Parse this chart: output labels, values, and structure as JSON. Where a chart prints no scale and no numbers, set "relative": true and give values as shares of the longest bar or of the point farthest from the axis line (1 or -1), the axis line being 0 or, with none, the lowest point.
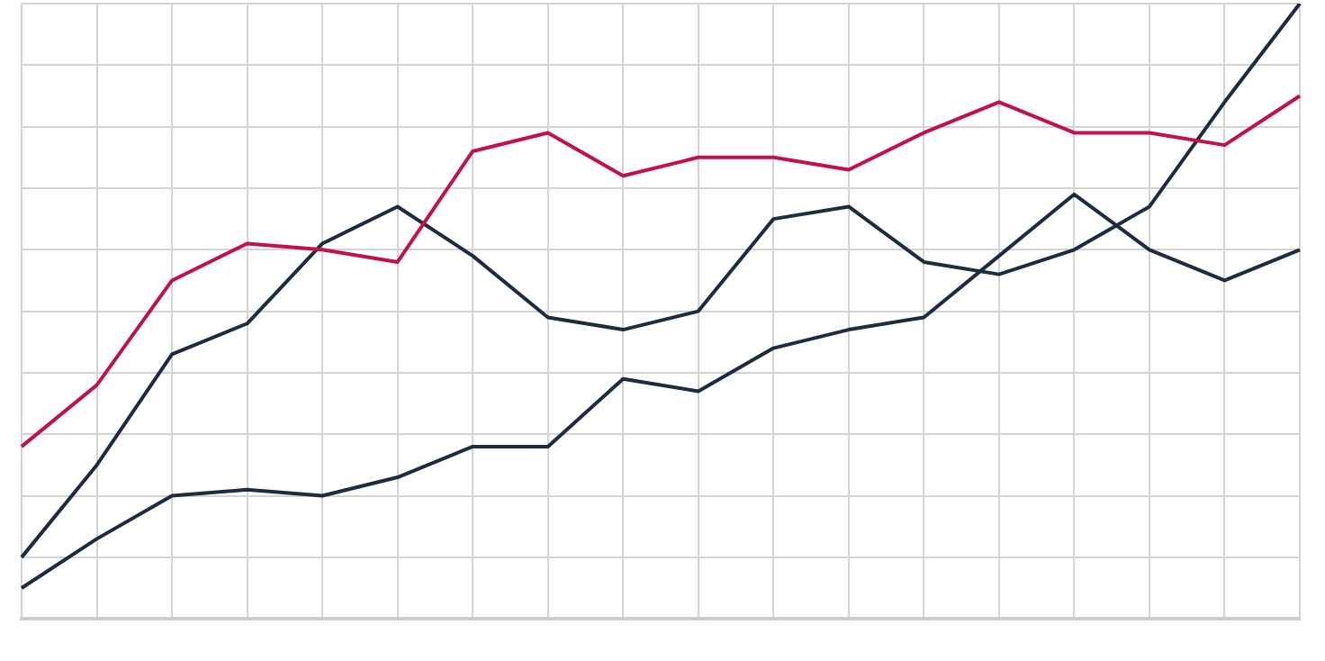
{
  "chart_data": {
    "type": "line",
    "relative": true,
    "grid": true,
    "legend": false,
    "marker": "none",
    "line_style": "solid",
    "categories": [
      null,
      null,
      null,
      null,
      null,
      null,
      null,
      null,
      null,
      null,
      null,
      null,
      null,
      null,
      null,
      null,
      null,
      null
    ],
    "series": [
      {
        "color": "#c2124a",
        "values": [
          0.28,
          0.38,
          0.55,
          0.61,
          0.6,
          0.58,
          0.76,
          0.79,
          0.72,
          0.75,
          0.75,
          0.73,
          0.79,
          0.84,
          0.79,
          0.79,
          0.77,
          0.85
        ]
      },
      {
        "color": "#1f2b3f",
        "values": [
          0.1,
          0.25,
          0.43,
          0.48,
          0.61,
          0.67,
          0.59,
          0.49,
          0.47,
          0.5,
          0.65,
          0.67,
          0.58,
          0.56,
          0.6,
          0.67,
          0.84,
          1
        ]
      },
      {
        "color": "#1f2b3f",
        "values": [
          0.05,
          0.13,
          0.2,
          0.21,
          0.2,
          0.23,
          0.28,
          0.28,
          0.39,
          0.37,
          0.44,
          0.47,
          0.49,
          0.59,
          0.69,
          0.6,
          0.55,
          0.6
        ]
      }
    ]
  }
}
